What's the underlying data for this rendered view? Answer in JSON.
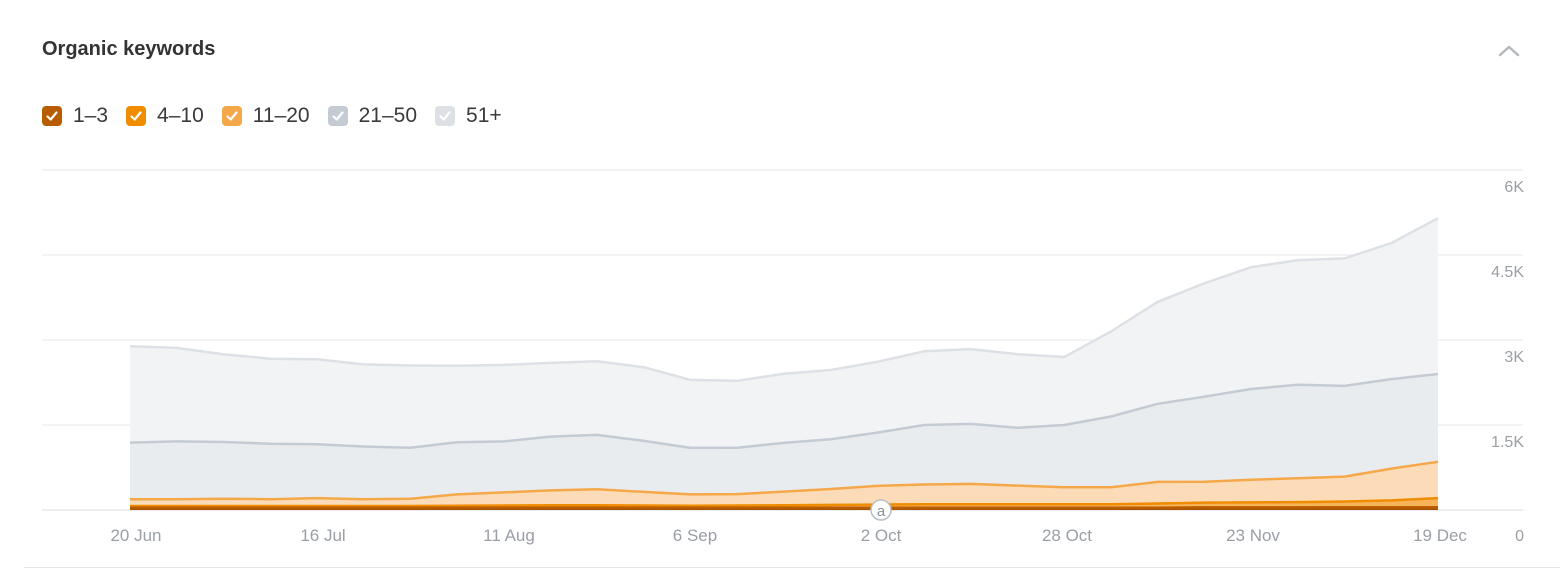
{
  "header": {
    "title": "Organic keywords",
    "collapse_icon": "chevron-up-icon"
  },
  "legend": {
    "items": [
      {
        "label": "1–3",
        "color": "#b85c00",
        "checked": true
      },
      {
        "label": "4–10",
        "color": "#f08c00",
        "checked": true
      },
      {
        "label": "11–20",
        "color": "#f5a84a",
        "checked": true
      },
      {
        "label": "21–50",
        "color": "#c5cbd3",
        "checked": true
      },
      {
        "label": "51+",
        "color": "#dde1e6",
        "checked": true
      }
    ]
  },
  "chart_data": {
    "type": "area",
    "stacked": true,
    "x_ticks": [
      "20 Jun",
      "16 Jul",
      "11 Aug",
      "6 Sep",
      "2 Oct",
      "28 Oct",
      "23 Nov",
      "19 Dec"
    ],
    "y_ticks": [
      "0",
      "1.5K",
      "3K",
      "4.5K",
      "6K"
    ],
    "ylim": [
      0,
      6000
    ],
    "grid": true,
    "annotation": {
      "label": "a",
      "x": "2 Oct"
    },
    "x": [
      "20 Jun",
      "27 Jun",
      "4 Jul",
      "11 Jul",
      "16 Jul",
      "23 Jul",
      "30 Jul",
      "6 Aug",
      "11 Aug",
      "18 Aug",
      "25 Aug",
      "1 Sep",
      "6 Sep",
      "13 Sep",
      "20 Sep",
      "27 Sep",
      "2 Oct",
      "9 Oct",
      "16 Oct",
      "23 Oct",
      "28 Oct",
      "4 Nov",
      "11 Nov",
      "18 Nov",
      "23 Nov",
      "30 Nov",
      "7 Dec",
      "14 Dec",
      "19 Dec"
    ],
    "series": [
      {
        "name": "1–3",
        "color": "#b85c00",
        "fill": "#a85400",
        "values": [
          40,
          40,
          40,
          40,
          40,
          40,
          40,
          40,
          40,
          40,
          40,
          40,
          40,
          40,
          40,
          40,
          40,
          40,
          40,
          40,
          40,
          40,
          40,
          45,
          45,
          45,
          50,
          50,
          50
        ]
      },
      {
        "name": "4–10",
        "color": "#f08c00",
        "fill": "#f7b35a",
        "values": [
          30,
          30,
          30,
          30,
          30,
          30,
          30,
          35,
          40,
          45,
          45,
          40,
          35,
          40,
          45,
          50,
          55,
          60,
          60,
          60,
          60,
          60,
          75,
          85,
          90,
          95,
          100,
          120,
          160
        ]
      },
      {
        "name": "11–20",
        "color": "#f5a84a",
        "fill": "#fcdcb8",
        "values": [
          120,
          120,
          130,
          120,
          140,
          120,
          130,
          200,
          230,
          260,
          280,
          240,
          200,
          200,
          240,
          280,
          330,
          350,
          360,
          330,
          300,
          300,
          380,
          370,
          400,
          420,
          440,
          560,
          640
        ]
      },
      {
        "name": "21–50",
        "color": "#c5cbd3",
        "fill": "#e9ecef",
        "values": [
          1000,
          1020,
          1000,
          980,
          950,
          930,
          900,
          920,
          900,
          950,
          960,
          900,
          820,
          820,
          860,
          880,
          940,
          1050,
          1060,
          1020,
          1100,
          1250,
          1380,
          1500,
          1600,
          1650,
          1600,
          1580,
          1550
        ]
      },
      {
        "name": "51+",
        "color": "#dde1e6",
        "fill": "#f1f3f5",
        "values": [
          1700,
          1650,
          1550,
          1500,
          1500,
          1450,
          1450,
          1350,
          1350,
          1300,
          1300,
          1300,
          1200,
          1180,
          1220,
          1220,
          1250,
          1300,
          1320,
          1300,
          1200,
          1500,
          1800,
          2000,
          2150,
          2200,
          2250,
          2400,
          2750
        ]
      }
    ]
  }
}
